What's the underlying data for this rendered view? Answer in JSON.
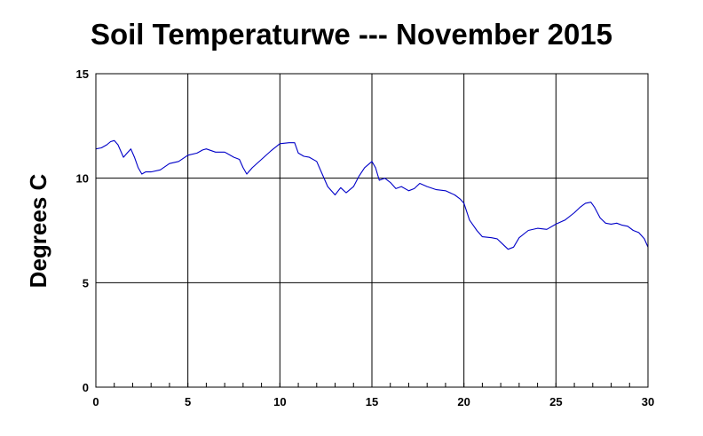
{
  "chart_data": {
    "type": "line",
    "title": "Soil Temperaturwe --- November 2015",
    "xlabel": "",
    "ylabel": "Degrees C",
    "xlim": [
      0,
      30
    ],
    "ylim": [
      0,
      15
    ],
    "x_ticks": [
      0,
      5,
      10,
      15,
      20,
      25,
      30
    ],
    "y_ticks": [
      0,
      5,
      10,
      15
    ],
    "x_minor_step": 1,
    "grid": true,
    "line_color": "#0000c8",
    "series": [
      {
        "x": [
          0,
          0.3,
          0.6,
          0.8,
          1.0,
          1.2,
          1.5,
          1.7,
          1.9,
          2.1,
          2.3,
          2.5,
          2.7,
          3.0,
          3.5,
          4.0,
          4.5,
          5.0,
          5.5,
          5.8,
          6.0,
          6.5,
          7.0,
          7.5,
          7.8,
          8.0,
          8.2,
          8.5,
          9.0,
          9.5,
          10.0,
          10.5,
          10.8,
          11.0,
          11.3,
          11.6,
          12.0,
          12.3,
          12.6,
          13.0,
          13.3,
          13.6,
          14.0,
          14.3,
          14.6,
          15.0,
          15.2,
          15.4,
          15.7,
          16.0,
          16.3,
          16.6,
          17.0,
          17.3,
          17.6,
          18.0,
          18.5,
          19.0,
          19.5,
          19.8,
          20.0,
          20.3,
          20.7,
          21.0,
          21.5,
          21.8,
          22.1,
          22.4,
          22.7,
          23.0,
          23.5,
          24.0,
          24.5,
          25.0,
          25.5,
          26.0,
          26.3,
          26.6,
          26.9,
          27.1,
          27.4,
          27.7,
          28.0,
          28.3,
          28.6,
          28.9,
          29.2,
          29.5,
          29.8,
          30.0
        ],
        "y": [
          11.4,
          11.45,
          11.6,
          11.75,
          11.8,
          11.6,
          11.0,
          11.2,
          11.4,
          11.0,
          10.5,
          10.2,
          10.3,
          10.3,
          10.4,
          10.7,
          10.8,
          11.1,
          11.2,
          11.35,
          11.4,
          11.25,
          11.25,
          11.0,
          10.9,
          10.5,
          10.2,
          10.5,
          10.9,
          11.3,
          11.65,
          11.7,
          11.7,
          11.2,
          11.05,
          11.0,
          10.8,
          10.2,
          9.6,
          9.2,
          9.55,
          9.3,
          9.6,
          10.1,
          10.5,
          10.8,
          10.5,
          9.9,
          10.0,
          9.8,
          9.5,
          9.6,
          9.4,
          9.5,
          9.75,
          9.6,
          9.45,
          9.4,
          9.2,
          9.0,
          8.8,
          8.0,
          7.5,
          7.2,
          7.15,
          7.1,
          6.85,
          6.6,
          6.7,
          7.15,
          7.5,
          7.6,
          7.55,
          7.8,
          8.0,
          8.35,
          8.6,
          8.8,
          8.85,
          8.6,
          8.1,
          7.85,
          7.8,
          7.85,
          7.75,
          7.7,
          7.5,
          7.4,
          7.1,
          6.7
        ]
      }
    ]
  }
}
